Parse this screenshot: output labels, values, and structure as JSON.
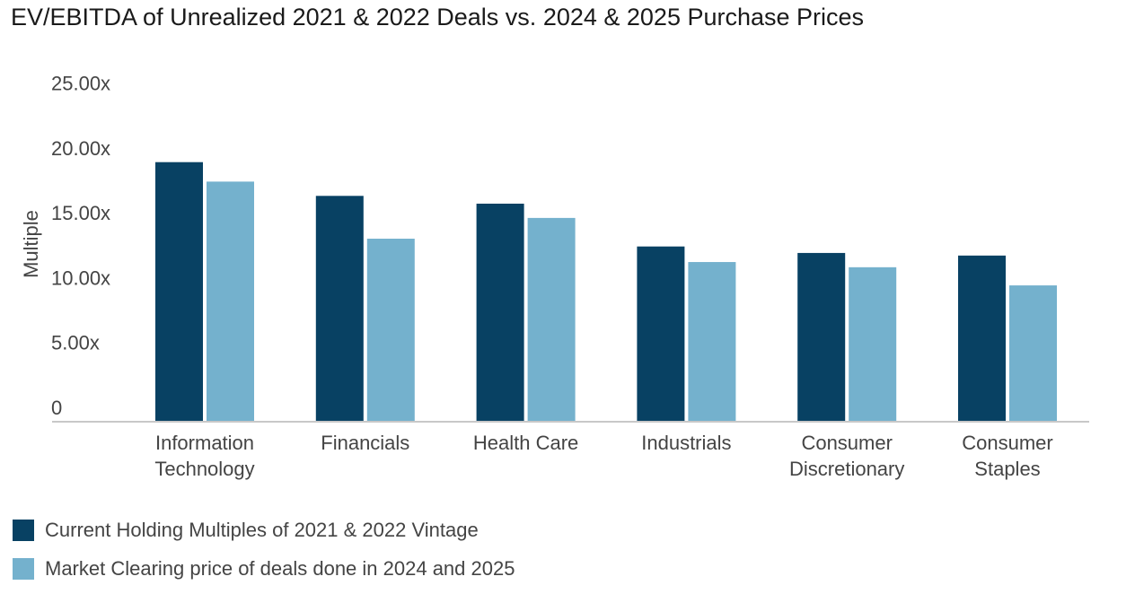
{
  "chart_data": {
    "type": "bar",
    "title": "EV/EBITDA of Unrealized 2021 & 2022 Deals vs. 2024 & 2025 Purchase Prices",
    "xlabel": "",
    "ylabel": "Multiple",
    "ylim": [
      0,
      25
    ],
    "yticks": [
      0,
      5,
      10,
      15,
      20,
      25
    ],
    "ytick_labels": [
      "0",
      "5.00x",
      "10.00x",
      "15.00x",
      "20.00x",
      "25.00x"
    ],
    "grid": false,
    "legend_position": "bottom-left",
    "categories": [
      [
        "Information",
        "Technology"
      ],
      [
        "Financials"
      ],
      [
        "Health Care"
      ],
      [
        "Industrials"
      ],
      [
        "Consumer",
        "Discretionary"
      ],
      [
        "Consumer",
        "Staples"
      ]
    ],
    "series": [
      {
        "name": "Current Holding Multiples of 2021 & 2022 Vintage",
        "color": "#084163",
        "values": [
          18.9,
          16.3,
          15.7,
          12.4,
          11.9,
          11.7
        ]
      },
      {
        "name": "Market Clearing price of deals done in 2024 and 2025",
        "color": "#74b1cd",
        "values": [
          17.4,
          13.0,
          14.6,
          11.2,
          10.8,
          9.4
        ]
      }
    ]
  }
}
